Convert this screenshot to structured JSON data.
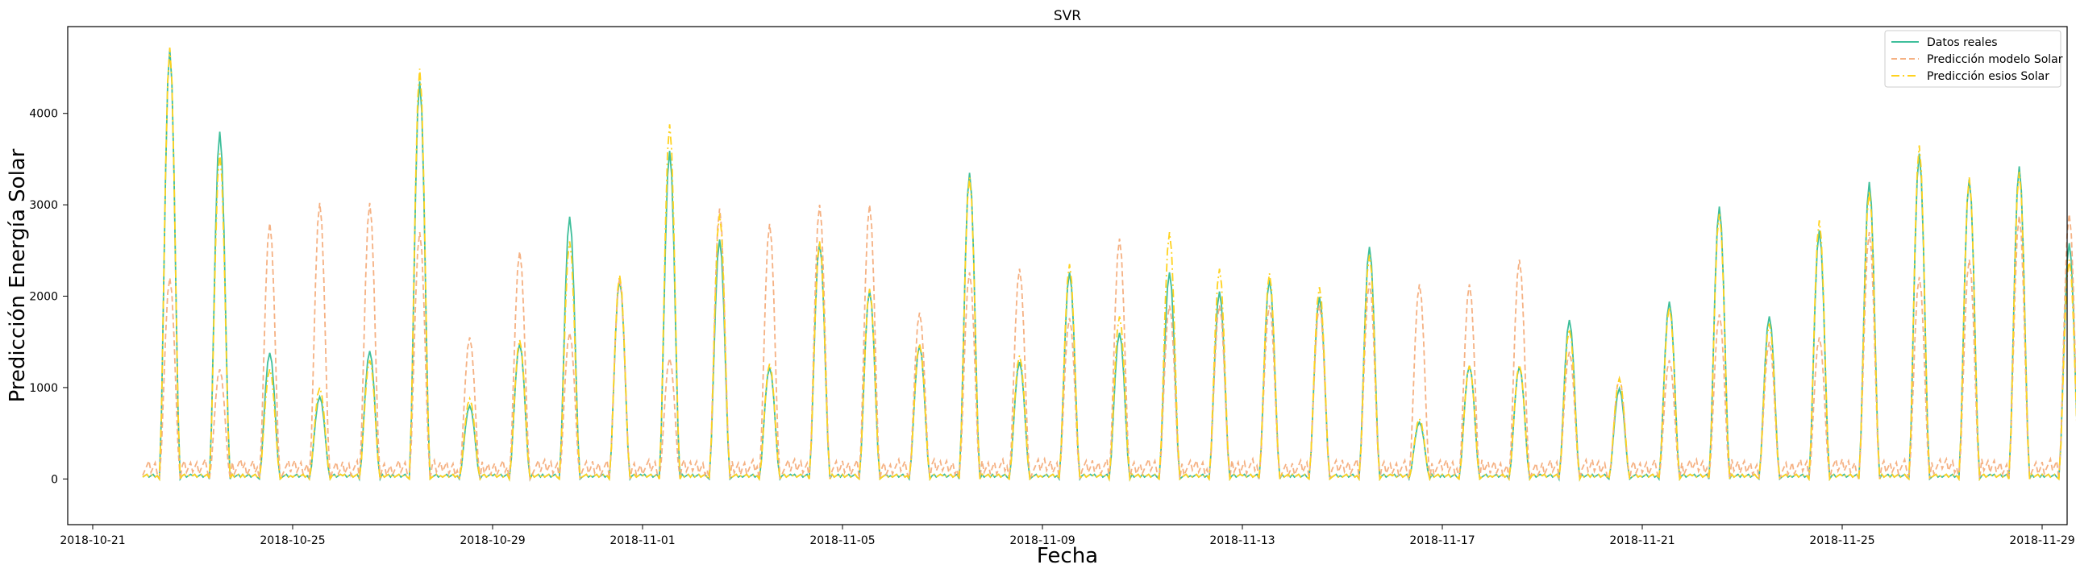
{
  "chart_data": {
    "type": "line",
    "title": "SVR",
    "xlabel": "Fecha",
    "ylabel": "Predicción Energía Solar",
    "xlim": [
      "2018-10-20T12:00",
      "2018-11-29T12:00"
    ],
    "ylim": [
      -500,
      4950
    ],
    "xticks": [
      "2018-10-21",
      "2018-10-25",
      "2018-10-29",
      "2018-11-01",
      "2018-11-05",
      "2018-11-09",
      "2018-11-13",
      "2018-11-17",
      "2018-11-21",
      "2018-11-25",
      "2018-11-29"
    ],
    "yticks": [
      0,
      1000,
      2000,
      3000,
      4000
    ],
    "legend_position": "top-right",
    "start": "2018-10-22",
    "end": "2018-11-28",
    "series": [
      {
        "name": "Datos reales",
        "color": "#3fbf9b",
        "dash": "solid",
        "daily_peaks": [
          4700,
          3800,
          1380,
          900,
          1400,
          4350,
          800,
          1480,
          2870,
          2180,
          3590,
          2620,
          1220,
          2580,
          2060,
          1460,
          3350,
          1280,
          2260,
          1600,
          2260,
          2050,
          2180,
          1990,
          2540,
          620,
          1240,
          1230,
          1740,
          990,
          1940,
          2980,
          1780,
          2720,
          3250,
          3560,
          3280,
          3420,
          2580
        ]
      },
      {
        "name": "Predicción modelo Solar",
        "color": "#f5b183",
        "dash": "dashed",
        "daily_peaks": [
          2200,
          1200,
          2800,
          3020,
          3020,
          2700,
          1550,
          2490,
          1600,
          2200,
          1320,
          2960,
          2790,
          3000,
          3000,
          1820,
          2260,
          2300,
          1760,
          2630,
          1900,
          1900,
          1900,
          1900,
          2150,
          2130,
          2130,
          2400,
          1390,
          1100,
          1300,
          1800,
          1500,
          1550,
          2700,
          2210,
          2400,
          2880,
          2900
        ]
      },
      {
        "name": "Predicción esios Solar",
        "color": "#ffd21f",
        "dash": "dashdot",
        "daily_peaks": [
          4720,
          3560,
          1200,
          1000,
          1300,
          4490,
          880,
          1520,
          2600,
          2230,
          3880,
          2900,
          1260,
          2600,
          2080,
          1480,
          3300,
          1350,
          2350,
          1780,
          2700,
          2300,
          2250,
          2100,
          2450,
          660,
          1240,
          1250,
          1640,
          1100,
          1880,
          2900,
          1700,
          2830,
          3150,
          3650,
          3300,
          3360,
          2400
        ]
      }
    ]
  }
}
